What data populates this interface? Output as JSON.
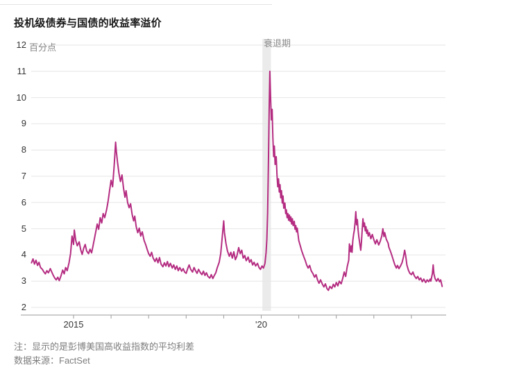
{
  "chart": {
    "title": "投机级债券与国债的收益率溢价",
    "unit_label": "百分点",
    "recession_label": "衰退期",
    "note": "注：显示的是彭博美国高收益指数的平均利差",
    "source": "数据来源：FactSet"
  },
  "chart_data": {
    "type": "line",
    "title": "投机级债券与国债的收益率溢价",
    "ylabel": "百分点",
    "xlabel": "",
    "ylim": [
      2,
      12
    ],
    "grid": true,
    "legend_position": "none",
    "line_color": "#b42c81",
    "grid_color": "#e6e6e6",
    "axis_color": "#9a9a9a",
    "band_color": "#ebebeb",
    "y_ticks": [
      12,
      11,
      10,
      9,
      8,
      7,
      6,
      5,
      4,
      3,
      2
    ],
    "x_tick_years": [
      2015,
      2016,
      2017,
      2018,
      2019,
      2020,
      2021,
      2022,
      2023,
      2024
    ],
    "x_tick_labels": [
      {
        "year": 2015,
        "text": "2015"
      },
      {
        "year": 2020,
        "text": "'20"
      }
    ],
    "recession": {
      "label": "衰退期",
      "start": 2020.03,
      "end": 2020.26
    },
    "series_name": "投机级债券与国债的收益率溢价（百分点）",
    "points": [
      [
        2013.88,
        3.7
      ],
      [
        2013.92,
        3.85
      ],
      [
        2013.96,
        3.65
      ],
      [
        2014.0,
        3.8
      ],
      [
        2014.04,
        3.6
      ],
      [
        2014.08,
        3.72
      ],
      [
        2014.12,
        3.52
      ],
      [
        2014.17,
        3.45
      ],
      [
        2014.21,
        3.35
      ],
      [
        2014.25,
        3.28
      ],
      [
        2014.29,
        3.4
      ],
      [
        2014.33,
        3.32
      ],
      [
        2014.38,
        3.48
      ],
      [
        2014.42,
        3.35
      ],
      [
        2014.46,
        3.22
      ],
      [
        2014.5,
        3.12
      ],
      [
        2014.54,
        3.05
      ],
      [
        2014.58,
        3.15
      ],
      [
        2014.62,
        3.02
      ],
      [
        2014.67,
        3.22
      ],
      [
        2014.71,
        3.42
      ],
      [
        2014.75,
        3.28
      ],
      [
        2014.79,
        3.52
      ],
      [
        2014.83,
        3.4
      ],
      [
        2014.88,
        3.7
      ],
      [
        2014.92,
        4.05
      ],
      [
        2014.96,
        4.72
      ],
      [
        2015.0,
        4.4
      ],
      [
        2015.02,
        4.95
      ],
      [
        2015.06,
        4.55
      ],
      [
        2015.1,
        4.35
      ],
      [
        2015.15,
        4.5
      ],
      [
        2015.19,
        4.2
      ],
      [
        2015.23,
        4.02
      ],
      [
        2015.27,
        4.25
      ],
      [
        2015.31,
        4.4
      ],
      [
        2015.35,
        4.15
      ],
      [
        2015.4,
        4.05
      ],
      [
        2015.44,
        4.22
      ],
      [
        2015.48,
        4.08
      ],
      [
        2015.52,
        4.35
      ],
      [
        2015.56,
        4.65
      ],
      [
        2015.6,
        4.95
      ],
      [
        2015.63,
        5.18
      ],
      [
        2015.67,
        4.98
      ],
      [
        2015.71,
        5.42
      ],
      [
        2015.75,
        5.22
      ],
      [
        2015.79,
        5.58
      ],
      [
        2015.83,
        5.42
      ],
      [
        2015.88,
        5.72
      ],
      [
        2015.92,
        6.05
      ],
      [
        2015.96,
        6.45
      ],
      [
        2016.0,
        6.85
      ],
      [
        2016.04,
        6.6
      ],
      [
        2016.08,
        7.35
      ],
      [
        2016.1,
        7.8
      ],
      [
        2016.12,
        8.3
      ],
      [
        2016.14,
        7.95
      ],
      [
        2016.17,
        7.55
      ],
      [
        2016.21,
        7.1
      ],
      [
        2016.25,
        6.8
      ],
      [
        2016.29,
        7.05
      ],
      [
        2016.33,
        6.55
      ],
      [
        2016.37,
        6.2
      ],
      [
        2016.4,
        6.45
      ],
      [
        2016.44,
        6.0
      ],
      [
        2016.48,
        5.8
      ],
      [
        2016.52,
        5.95
      ],
      [
        2016.56,
        5.55
      ],
      [
        2016.6,
        5.3
      ],
      [
        2016.63,
        5.48
      ],
      [
        2016.67,
        5.08
      ],
      [
        2016.71,
        4.85
      ],
      [
        2016.75,
        5.02
      ],
      [
        2016.79,
        4.72
      ],
      [
        2016.83,
        4.88
      ],
      [
        2016.88,
        4.55
      ],
      [
        2016.92,
        4.4
      ],
      [
        2016.96,
        4.22
      ],
      [
        2017.0,
        4.05
      ],
      [
        2017.04,
        3.95
      ],
      [
        2017.08,
        4.1
      ],
      [
        2017.12,
        3.88
      ],
      [
        2017.17,
        3.75
      ],
      [
        2017.21,
        3.88
      ],
      [
        2017.25,
        3.7
      ],
      [
        2017.29,
        3.9
      ],
      [
        2017.33,
        3.65
      ],
      [
        2017.38,
        3.55
      ],
      [
        2017.42,
        3.7
      ],
      [
        2017.46,
        3.58
      ],
      [
        2017.5,
        3.75
      ],
      [
        2017.54,
        3.55
      ],
      [
        2017.58,
        3.68
      ],
      [
        2017.63,
        3.5
      ],
      [
        2017.67,
        3.62
      ],
      [
        2017.71,
        3.45
      ],
      [
        2017.75,
        3.58
      ],
      [
        2017.79,
        3.4
      ],
      [
        2017.83,
        3.52
      ],
      [
        2017.88,
        3.38
      ],
      [
        2017.92,
        3.48
      ],
      [
        2017.96,
        3.35
      ],
      [
        2018.0,
        3.3
      ],
      [
        2018.04,
        3.48
      ],
      [
        2018.08,
        3.62
      ],
      [
        2018.12,
        3.45
      ],
      [
        2018.17,
        3.35
      ],
      [
        2018.21,
        3.52
      ],
      [
        2018.25,
        3.4
      ],
      [
        2018.29,
        3.3
      ],
      [
        2018.33,
        3.45
      ],
      [
        2018.38,
        3.32
      ],
      [
        2018.42,
        3.25
      ],
      [
        2018.46,
        3.38
      ],
      [
        2018.5,
        3.22
      ],
      [
        2018.54,
        3.32
      ],
      [
        2018.58,
        3.18
      ],
      [
        2018.63,
        3.12
      ],
      [
        2018.67,
        3.25
      ],
      [
        2018.71,
        3.1
      ],
      [
        2018.75,
        3.22
      ],
      [
        2018.79,
        3.32
      ],
      [
        2018.83,
        3.52
      ],
      [
        2018.88,
        3.72
      ],
      [
        2018.92,
        4.05
      ],
      [
        2018.96,
        4.65
      ],
      [
        2019.0,
        5.3
      ],
      [
        2019.02,
        4.85
      ],
      [
        2019.06,
        4.45
      ],
      [
        2019.1,
        4.15
      ],
      [
        2019.15,
        3.95
      ],
      [
        2019.19,
        4.1
      ],
      [
        2019.23,
        3.88
      ],
      [
        2019.27,
        4.12
      ],
      [
        2019.31,
        3.82
      ],
      [
        2019.35,
        3.95
      ],
      [
        2019.4,
        4.28
      ],
      [
        2019.44,
        4.05
      ],
      [
        2019.48,
        4.18
      ],
      [
        2019.52,
        3.88
      ],
      [
        2019.56,
        3.98
      ],
      [
        2019.6,
        3.78
      ],
      [
        2019.65,
        3.92
      ],
      [
        2019.69,
        3.72
      ],
      [
        2019.73,
        3.82
      ],
      [
        2019.77,
        3.62
      ],
      [
        2019.81,
        3.72
      ],
      [
        2019.85,
        3.58
      ],
      [
        2019.9,
        3.68
      ],
      [
        2019.94,
        3.52
      ],
      [
        2019.98,
        3.45
      ],
      [
        2020.02,
        3.58
      ],
      [
        2020.06,
        3.5
      ],
      [
        2020.1,
        3.68
      ],
      [
        2020.13,
        4.1
      ],
      [
        2020.15,
        4.6
      ],
      [
        2020.17,
        5.6
      ],
      [
        2020.19,
        7.4
      ],
      [
        2020.21,
        9.5
      ],
      [
        2020.23,
        11.0
      ],
      [
        2020.25,
        10.0
      ],
      [
        2020.27,
        9.15
      ],
      [
        2020.29,
        9.55
      ],
      [
        2020.31,
        8.45
      ],
      [
        2020.33,
        7.75
      ],
      [
        2020.35,
        8.15
      ],
      [
        2020.37,
        7.45
      ],
      [
        2020.4,
        7.75
      ],
      [
        2020.42,
        7.05
      ],
      [
        2020.44,
        6.6
      ],
      [
        2020.46,
        6.9
      ],
      [
        2020.48,
        6.4
      ],
      [
        2020.5,
        6.68
      ],
      [
        2020.52,
        6.18
      ],
      [
        2020.54,
        6.45
      ],
      [
        2020.56,
        5.98
      ],
      [
        2020.58,
        6.25
      ],
      [
        2020.6,
        5.78
      ],
      [
        2020.63,
        5.98
      ],
      [
        2020.65,
        5.58
      ],
      [
        2020.67,
        5.72
      ],
      [
        2020.69,
        5.42
      ],
      [
        2020.71,
        5.58
      ],
      [
        2020.73,
        5.32
      ],
      [
        2020.75,
        5.52
      ],
      [
        2020.77,
        5.28
      ],
      [
        2020.79,
        5.45
      ],
      [
        2020.81,
        5.18
      ],
      [
        2020.83,
        5.38
      ],
      [
        2020.85,
        5.12
      ],
      [
        2020.88,
        5.28
      ],
      [
        2020.9,
        4.98
      ],
      [
        2020.92,
        5.12
      ],
      [
        2020.94,
        4.88
      ],
      [
        2020.96,
        5.02
      ],
      [
        2021.0,
        4.55
      ],
      [
        2021.04,
        4.35
      ],
      [
        2021.08,
        4.15
      ],
      [
        2021.13,
        3.95
      ],
      [
        2021.17,
        3.8
      ],
      [
        2021.21,
        3.62
      ],
      [
        2021.25,
        3.5
      ],
      [
        2021.29,
        3.6
      ],
      [
        2021.33,
        3.4
      ],
      [
        2021.38,
        3.28
      ],
      [
        2021.42,
        3.15
      ],
      [
        2021.46,
        3.25
      ],
      [
        2021.5,
        3.05
      ],
      [
        2021.54,
        2.92
      ],
      [
        2021.58,
        3.05
      ],
      [
        2021.63,
        2.88
      ],
      [
        2021.67,
        2.78
      ],
      [
        2021.71,
        2.9
      ],
      [
        2021.75,
        2.72
      ],
      [
        2021.79,
        2.65
      ],
      [
        2021.83,
        2.8
      ],
      [
        2021.88,
        2.72
      ],
      [
        2021.92,
        2.88
      ],
      [
        2021.96,
        2.78
      ],
      [
        2022.0,
        2.95
      ],
      [
        2022.04,
        2.82
      ],
      [
        2022.08,
        3.0
      ],
      [
        2022.13,
        2.9
      ],
      [
        2022.17,
        3.1
      ],
      [
        2022.21,
        3.35
      ],
      [
        2022.25,
        3.18
      ],
      [
        2022.29,
        3.55
      ],
      [
        2022.33,
        3.8
      ],
      [
        2022.35,
        4.42
      ],
      [
        2022.38,
        4.12
      ],
      [
        2022.4,
        4.35
      ],
      [
        2022.42,
        4.1
      ],
      [
        2022.44,
        4.55
      ],
      [
        2022.46,
        4.78
      ],
      [
        2022.48,
        4.95
      ],
      [
        2022.5,
        5.25
      ],
      [
        2022.52,
        5.65
      ],
      [
        2022.54,
        5.15
      ],
      [
        2022.56,
        5.35
      ],
      [
        2022.58,
        4.95
      ],
      [
        2022.6,
        4.68
      ],
      [
        2022.63,
        4.38
      ],
      [
        2022.65,
        4.18
      ],
      [
        2022.67,
        4.48
      ],
      [
        2022.69,
        4.95
      ],
      [
        2022.71,
        5.38
      ],
      [
        2022.73,
        5.08
      ],
      [
        2022.75,
        5.22
      ],
      [
        2022.77,
        4.92
      ],
      [
        2022.79,
        5.08
      ],
      [
        2022.81,
        4.82
      ],
      [
        2022.83,
        4.95
      ],
      [
        2022.85,
        4.72
      ],
      [
        2022.88,
        4.85
      ],
      [
        2022.92,
        4.62
      ],
      [
        2022.96,
        4.78
      ],
      [
        2023.0,
        4.58
      ],
      [
        2023.04,
        4.42
      ],
      [
        2023.08,
        4.58
      ],
      [
        2023.13,
        4.38
      ],
      [
        2023.17,
        4.52
      ],
      [
        2023.21,
        4.72
      ],
      [
        2023.24,
        5.0
      ],
      [
        2023.27,
        4.7
      ],
      [
        2023.29,
        4.85
      ],
      [
        2023.33,
        4.6
      ],
      [
        2023.38,
        4.45
      ],
      [
        2023.4,
        4.3
      ],
      [
        2023.44,
        4.15
      ],
      [
        2023.48,
        3.98
      ],
      [
        2023.52,
        3.8
      ],
      [
        2023.56,
        3.62
      ],
      [
        2023.6,
        3.5
      ],
      [
        2023.63,
        3.6
      ],
      [
        2023.67,
        3.48
      ],
      [
        2023.71,
        3.58
      ],
      [
        2023.75,
        3.7
      ],
      [
        2023.79,
        3.92
      ],
      [
        2023.82,
        4.18
      ],
      [
        2023.85,
        3.95
      ],
      [
        2023.88,
        3.62
      ],
      [
        2023.92,
        3.42
      ],
      [
        2023.96,
        3.3
      ],
      [
        2024.0,
        3.25
      ],
      [
        2024.04,
        3.35
      ],
      [
        2024.08,
        3.2
      ],
      [
        2024.13,
        3.1
      ],
      [
        2024.17,
        3.18
      ],
      [
        2024.21,
        3.05
      ],
      [
        2024.25,
        3.12
      ],
      [
        2024.29,
        2.98
      ],
      [
        2024.33,
        3.08
      ],
      [
        2024.38,
        2.95
      ],
      [
        2024.42,
        3.05
      ],
      [
        2024.46,
        2.98
      ],
      [
        2024.5,
        3.08
      ],
      [
        2024.52,
        3.0
      ],
      [
        2024.54,
        3.15
      ],
      [
        2024.56,
        3.3
      ],
      [
        2024.58,
        3.62
      ],
      [
        2024.6,
        3.28
      ],
      [
        2024.63,
        3.1
      ],
      [
        2024.67,
        3.0
      ],
      [
        2024.71,
        3.1
      ],
      [
        2024.75,
        2.98
      ],
      [
        2024.78,
        3.05
      ],
      [
        2024.82,
        2.8
      ]
    ]
  }
}
